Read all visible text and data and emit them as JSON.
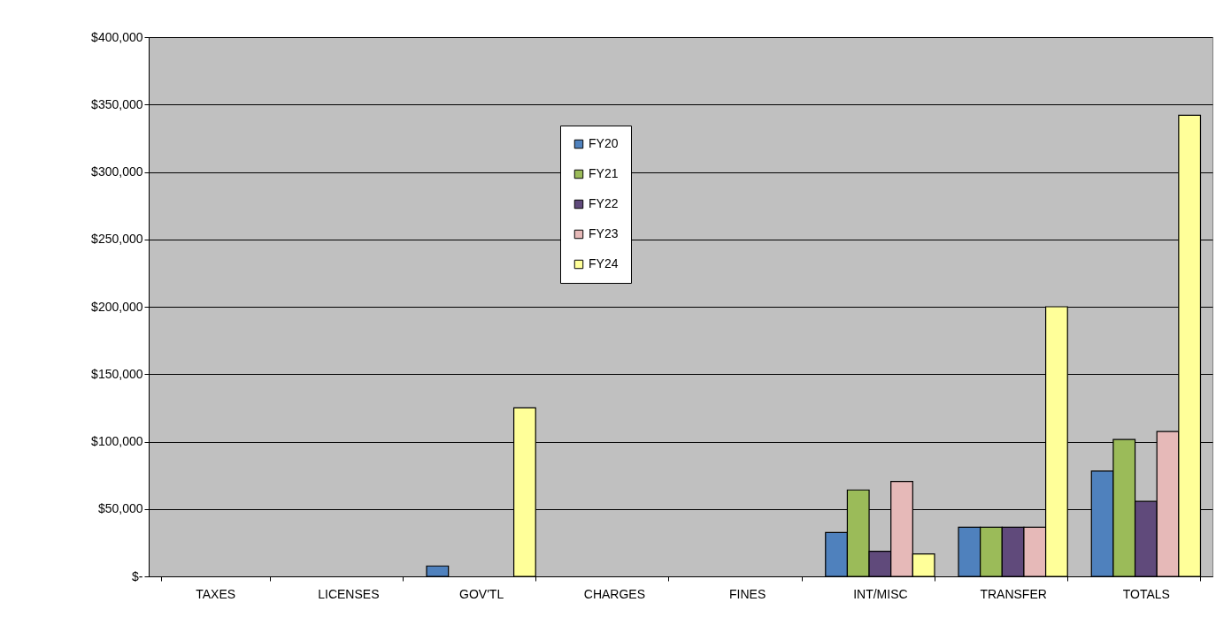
{
  "chart_data": {
    "type": "bar",
    "categories": [
      "TAXES",
      "LICENSES",
      "GOV'TL",
      "CHARGES",
      "FINES",
      "INT/MISC",
      "TRANSFER",
      "TOTALS"
    ],
    "series": [
      {
        "name": "FY20",
        "color": "#4f81bd",
        "values": [
          null,
          null,
          7700,
          null,
          null,
          32600,
          36500,
          78100
        ]
      },
      {
        "name": "FY21",
        "color": "#9bbb59",
        "values": [
          null,
          null,
          null,
          null,
          null,
          64100,
          36500,
          101500
        ]
      },
      {
        "name": "FY22",
        "color": "#604a7b",
        "values": [
          null,
          null,
          null,
          null,
          null,
          18600,
          36500,
          55600
        ]
      },
      {
        "name": "FY23",
        "color": "#e6b9b8",
        "values": [
          null,
          null,
          null,
          null,
          null,
          70400,
          36500,
          107400
        ]
      },
      {
        "name": "FY24",
        "color": "#ffff99",
        "values": [
          null,
          null,
          125000,
          null,
          null,
          16600,
          200000,
          342000
        ]
      }
    ],
    "ylim": [
      0,
      400000
    ],
    "yticks": [
      {
        "value": 0,
        "label": "$-"
      },
      {
        "value": 50000,
        "label": "$50,000"
      },
      {
        "value": 100000,
        "label": "$100,000"
      },
      {
        "value": 150000,
        "label": "$150,000"
      },
      {
        "value": 200000,
        "label": "$200,000"
      },
      {
        "value": 250000,
        "label": "$250,000"
      },
      {
        "value": 300000,
        "label": "$300,000"
      },
      {
        "value": 350000,
        "label": "$350,000"
      },
      {
        "value": 400000,
        "label": "$400,000"
      }
    ],
    "grid": "y",
    "legend": "top"
  }
}
